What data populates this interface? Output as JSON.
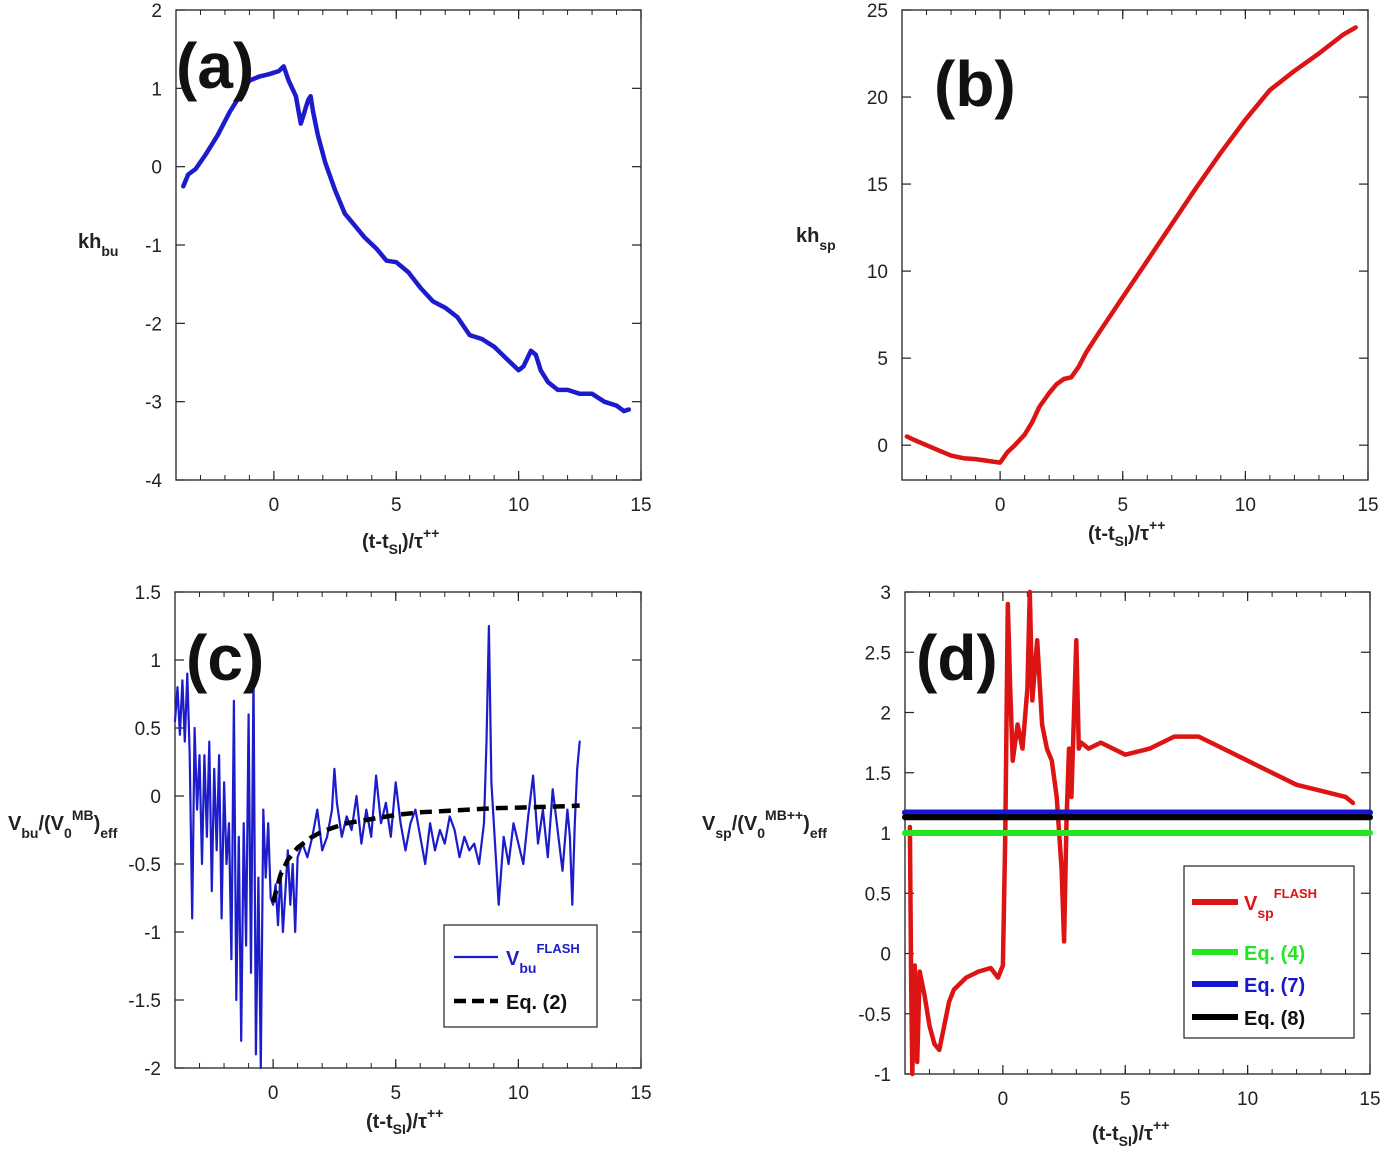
{
  "chart_data": [
    {
      "panel": "(a)",
      "type": "line",
      "xlim": [
        -4,
        15
      ],
      "ylim": [
        -4,
        2
      ],
      "xticks": [
        "0",
        "5",
        "10",
        "15"
      ],
      "yticks": [
        "2",
        "1",
        "0",
        "-1",
        "-2",
        "-3",
        "-4"
      ],
      "xlabel": {
        "main": "(t-t",
        "sub": "SI",
        "mid": ")/τ",
        "sup": "++"
      },
      "ylabel": {
        "main": "kh",
        "sub": "bu"
      },
      "series": [
        {
          "color": "#1c1ccc",
          "x": [
            -3.7,
            -3.5,
            -3.2,
            -2.8,
            -2.3,
            -1.8,
            -1.3,
            -1.0,
            -0.6,
            -0.2,
            0.2,
            0.4,
            0.6,
            0.9,
            1.1,
            1.2,
            1.3,
            1.4,
            1.5,
            1.6,
            1.8,
            2.1,
            2.5,
            2.9,
            3.3,
            3.7,
            4.2,
            4.6,
            5.0,
            5.5,
            6.0,
            6.5,
            7.0,
            7.5,
            8.0,
            8.5,
            9.0,
            9.5,
            10.0,
            10.2,
            10.5,
            10.7,
            10.9,
            11.2,
            11.6,
            12.0,
            12.5,
            13.0,
            13.5,
            14.0,
            14.3,
            14.5
          ],
          "y": [
            -0.25,
            -0.1,
            -0.03,
            0.15,
            0.4,
            0.7,
            0.95,
            1.1,
            1.15,
            1.18,
            1.22,
            1.28,
            1.1,
            0.9,
            0.55,
            0.65,
            0.75,
            0.85,
            0.9,
            0.7,
            0.4,
            0.05,
            -0.3,
            -0.6,
            -0.75,
            -0.9,
            -1.05,
            -1.2,
            -1.22,
            -1.35,
            -1.55,
            -1.72,
            -1.8,
            -1.92,
            -2.15,
            -2.2,
            -2.3,
            -2.45,
            -2.6,
            -2.55,
            -2.35,
            -2.4,
            -2.6,
            -2.75,
            -2.85,
            -2.85,
            -2.9,
            -2.9,
            -3.0,
            -3.05,
            -3.12,
            -3.1
          ]
        }
      ]
    },
    {
      "panel": "(b)",
      "type": "line",
      "xlim": [
        -4,
        15
      ],
      "ylim": [
        -2,
        25
      ],
      "xticks": [
        "0",
        "5",
        "10",
        "15"
      ],
      "yticks": [
        "25",
        "20",
        "15",
        "10",
        "5",
        "0"
      ],
      "xlabel": {
        "main": "(t-t",
        "sub": "SI",
        "mid": ")/τ",
        "sup": "++"
      },
      "ylabel": {
        "main": "kh",
        "sub": "sp"
      },
      "series": [
        {
          "color": "#dc1414",
          "x": [
            -3.8,
            -3.5,
            -3.0,
            -2.5,
            -2.0,
            -1.5,
            -1.0,
            -0.5,
            0.0,
            0.1,
            0.3,
            0.6,
            1.0,
            1.3,
            1.6,
            2.0,
            2.3,
            2.6,
            2.9,
            3.2,
            3.5,
            4,
            5,
            6,
            7,
            8,
            9,
            10,
            11,
            12,
            13,
            14,
            14.5
          ],
          "y": [
            0.5,
            0.3,
            0.0,
            -0.3,
            -0.6,
            -0.75,
            -0.8,
            -0.9,
            -1.0,
            -0.8,
            -0.4,
            0.0,
            0.6,
            1.3,
            2.2,
            3.0,
            3.5,
            3.8,
            3.9,
            4.5,
            5.3,
            6.4,
            8.5,
            10.6,
            12.7,
            14.8,
            16.8,
            18.7,
            20.4,
            21.5,
            22.5,
            23.6,
            24.0
          ]
        }
      ]
    },
    {
      "panel": "(c)",
      "type": "line",
      "xlim": [
        -4,
        15
      ],
      "ylim": [
        -2,
        1.5
      ],
      "xticks": [
        "0",
        "5",
        "10",
        "15"
      ],
      "yticks": [
        "1.5",
        "1",
        "0.5",
        "0",
        "-0.5",
        "-1",
        "-1.5",
        "-2"
      ],
      "xlabel": {
        "main": "(t-t",
        "sub": "SI",
        "mid": ")/τ",
        "sup": "++"
      },
      "ylabel": {
        "v": "V",
        "vsub": "bu",
        "mid": "/(V",
        "zsub": "0",
        "sup": "MB",
        "end": ")",
        "effsub": "eff"
      },
      "series": [
        {
          "name": {
            "main": "V",
            "sub": "bu",
            "sup": "FLASH"
          },
          "color": "#1c1ccc",
          "style": "solid",
          "x": [
            -4.0,
            -3.9,
            -3.8,
            -3.7,
            -3.6,
            -3.5,
            -3.4,
            -3.3,
            -3.2,
            -3.1,
            -3.0,
            -2.9,
            -2.8,
            -2.7,
            -2.6,
            -2.5,
            -2.4,
            -2.3,
            -2.2,
            -2.1,
            -2.0,
            -1.9,
            -1.8,
            -1.7,
            -1.6,
            -1.5,
            -1.4,
            -1.3,
            -1.2,
            -1.1,
            -1.0,
            -0.9,
            -0.8,
            -0.7,
            -0.6,
            -0.5,
            -0.4,
            -0.3,
            -0.2,
            -0.1,
            0.0,
            0.1,
            0.2,
            0.3,
            0.4,
            0.5,
            0.6,
            0.7,
            0.8,
            0.9,
            1.0,
            1.2,
            1.4,
            1.6,
            1.8,
            2.0,
            2.2,
            2.4,
            2.5,
            2.6,
            2.8,
            3.0,
            3.2,
            3.4,
            3.6,
            3.8,
            4.0,
            4.2,
            4.4,
            4.6,
            4.8,
            5.0,
            5.2,
            5.4,
            5.6,
            5.8,
            6.0,
            6.2,
            6.4,
            6.6,
            6.8,
            7.0,
            7.2,
            7.4,
            7.6,
            7.8,
            8.0,
            8.2,
            8.4,
            8.6,
            8.7,
            8.8,
            8.9,
            9.0,
            9.2,
            9.4,
            9.6,
            9.8,
            10.0,
            10.2,
            10.4,
            10.6,
            10.8,
            11.0,
            11.2,
            11.4,
            11.6,
            11.8,
            12.0,
            12.1,
            12.2,
            12.3,
            12.4,
            12.5
          ],
          "y": [
            0.55,
            0.8,
            0.45,
            0.85,
            0.4,
            0.9,
            0.3,
            -0.9,
            0.5,
            -0.1,
            0.3,
            -0.5,
            0.3,
            -0.3,
            0.4,
            -0.7,
            0.2,
            -0.4,
            0.3,
            -0.9,
            0.1,
            -0.5,
            -0.2,
            -1.2,
            0.7,
            -1.5,
            -0.3,
            -1.8,
            -0.2,
            -1.1,
            0.6,
            -1.3,
            0.9,
            -1.9,
            -0.6,
            -2.0,
            -0.1,
            -0.6,
            -0.2,
            -0.75,
            -0.8,
            -0.65,
            -0.95,
            -0.55,
            -1.0,
            -0.7,
            -0.4,
            -0.8,
            -0.5,
            -1.0,
            -0.45,
            -0.35,
            -0.45,
            -0.3,
            -0.1,
            -0.4,
            -0.3,
            -0.1,
            0.2,
            -0.05,
            -0.3,
            -0.15,
            -0.25,
            0.0,
            -0.35,
            -0.1,
            -0.3,
            0.15,
            -0.2,
            -0.05,
            -0.3,
            0.1,
            -0.2,
            -0.4,
            -0.2,
            -0.1,
            -0.3,
            -0.5,
            -0.2,
            -0.4,
            -0.25,
            -0.35,
            -0.15,
            -0.25,
            -0.45,
            -0.3,
            -0.4,
            -0.35,
            -0.5,
            -0.2,
            0.4,
            1.25,
            0.1,
            -0.2,
            -0.8,
            -0.3,
            -0.5,
            -0.2,
            -0.35,
            -0.5,
            -0.15,
            0.15,
            -0.35,
            -0.1,
            -0.45,
            0.05,
            -0.25,
            -0.55,
            -0.1,
            -0.3,
            -0.8,
            -0.2,
            0.2,
            0.4
          ]
        },
        {
          "name": {
            "main": "Eq. (2)"
          },
          "color": "#000000",
          "style": "dashed",
          "x": [
            0.0,
            0.3,
            0.6,
            1.0,
            1.5,
            2.0,
            3.0,
            4.0,
            5.0,
            6.0,
            7.0,
            8.0,
            9.0,
            10.0,
            11.0,
            12.0,
            12.5
          ],
          "y": [
            -0.78,
            -0.58,
            -0.47,
            -0.38,
            -0.31,
            -0.26,
            -0.2,
            -0.17,
            -0.14,
            -0.12,
            -0.11,
            -0.1,
            -0.09,
            -0.085,
            -0.08,
            -0.075,
            -0.07
          ]
        }
      ]
    },
    {
      "panel": "(d)",
      "type": "line",
      "xlim": [
        -4,
        15
      ],
      "ylim": [
        -1,
        3
      ],
      "xticks": [
        "0",
        "5",
        "10",
        "15"
      ],
      "yticks": [
        "3",
        "2.5",
        "2",
        "1.5",
        "1",
        "0.5",
        "0",
        "-0.5",
        "-1"
      ],
      "xlabel": {
        "main": "(t-t",
        "sub": "SI",
        "mid": ")/τ",
        "sup": "++"
      },
      "ylabel": {
        "v": "V",
        "vsub": "sp",
        "mid": "/(V",
        "zsub": "0",
        "sup": "MB++",
        "end": ")",
        "effsub": "eff"
      },
      "series": [
        {
          "name": {
            "main": "V",
            "sub": "sp",
            "sup": "FLASH"
          },
          "color": "#dc1414",
          "style": "solid",
          "x": [
            -3.8,
            -3.75,
            -3.7,
            -3.6,
            -3.5,
            -3.4,
            -3.2,
            -3.0,
            -2.8,
            -2.6,
            -2.4,
            -2.2,
            -2.0,
            -1.5,
            -1.0,
            -0.5,
            -0.2,
            0.0,
            0.1,
            0.2,
            0.3,
            0.4,
            0.6,
            0.8,
            1.0,
            1.1,
            1.2,
            1.4,
            1.6,
            1.8,
            2.0,
            2.2,
            2.4,
            2.5,
            2.6,
            2.7,
            2.8,
            3.0,
            3.1,
            3.2,
            3.5,
            4,
            5,
            6,
            7,
            8,
            9,
            10,
            11,
            12,
            13,
            14,
            14.3
          ],
          "y": [
            1.05,
            -0.2,
            -1.0,
            -0.1,
            -0.9,
            -0.15,
            -0.35,
            -0.6,
            -0.75,
            -0.8,
            -0.6,
            -0.4,
            -0.3,
            -0.2,
            -0.15,
            -0.12,
            -0.2,
            -0.1,
            1.0,
            2.9,
            2.2,
            1.6,
            1.9,
            1.7,
            2.2,
            3.0,
            2.1,
            2.6,
            1.9,
            1.7,
            1.6,
            1.3,
            0.7,
            0.1,
            1.1,
            1.7,
            1.3,
            2.6,
            1.7,
            1.75,
            1.7,
            1.75,
            1.65,
            1.7,
            1.8,
            1.8,
            1.7,
            1.6,
            1.5,
            1.4,
            1.35,
            1.3,
            1.25
          ]
        },
        {
          "name": {
            "main": "Eq. (4)"
          },
          "color": "#22e622",
          "style": "solid",
          "x": [
            -4,
            15
          ],
          "y": [
            1.0,
            1.0
          ]
        },
        {
          "name": {
            "main": "Eq. (7)"
          },
          "color": "#1616d4",
          "style": "solid",
          "x": [
            -4,
            15
          ],
          "y": [
            1.17,
            1.17
          ]
        },
        {
          "name": {
            "main": "Eq. (8)"
          },
          "color": "#000000",
          "style": "solid",
          "x": [
            -4,
            15
          ],
          "y": [
            1.13,
            1.13
          ]
        }
      ]
    }
  ]
}
